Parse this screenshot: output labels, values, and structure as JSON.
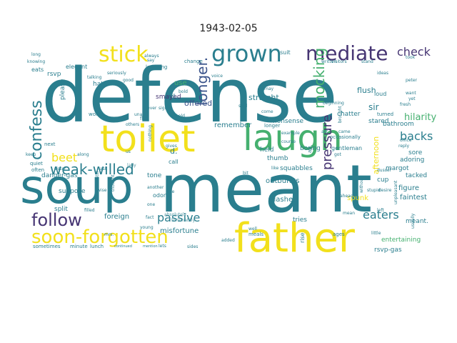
{
  "title": "1943-02-05",
  "colors": {
    "yellow": "#f2e01c",
    "teal": "#2a7e8e",
    "green": "#45b06f",
    "purple": "#463573",
    "blue": "#3b548b",
    "lightgreen": "#7ed05d"
  },
  "words": [
    {
      "t": "defense",
      "c": "teal"
    },
    {
      "t": "meant",
      "c": "teal"
    },
    {
      "t": "soup",
      "c": "teal"
    },
    {
      "t": "toilet",
      "c": "yellow"
    },
    {
      "t": "laugh",
      "c": "green"
    },
    {
      "t": "father",
      "c": "yellow"
    },
    {
      "t": "grown",
      "c": "teal"
    },
    {
      "t": "mediate",
      "c": "purple"
    },
    {
      "t": "stick",
      "c": "yellow"
    },
    {
      "t": "soon-forgotten",
      "c": "yellow"
    },
    {
      "t": "follow",
      "c": "purple"
    },
    {
      "t": "weak-willed",
      "c": "teal"
    },
    {
      "t": "confess",
      "c": "teal"
    },
    {
      "t": "check",
      "c": "purple"
    },
    {
      "t": "longer.",
      "c": "blue"
    },
    {
      "t": "mocking",
      "c": "green"
    },
    {
      "t": "pressure",
      "c": "purple"
    },
    {
      "t": "backs",
      "c": "teal"
    },
    {
      "t": "passive",
      "c": "teal"
    },
    {
      "t": "eaters",
      "c": "teal"
    },
    {
      "t": "beet",
      "c": "yellow"
    },
    {
      "t": "hilarity",
      "c": "green"
    },
    {
      "t": "sir",
      "c": "teal"
    },
    {
      "t": "flush",
      "c": "teal"
    },
    {
      "t": "grown",
      "c": "teal"
    },
    {
      "t": "offered",
      "c": "blue"
    },
    {
      "t": "straight",
      "c": "teal"
    },
    {
      "t": "smayed",
      "c": "purple"
    },
    {
      "t": "remember",
      "c": "teal"
    },
    {
      "t": "squabbles",
      "c": "teal"
    },
    {
      "t": "outbursts",
      "c": "teal"
    },
    {
      "t": "clashes",
      "c": "teal"
    },
    {
      "t": "foreign",
      "c": "teal"
    },
    {
      "t": "misfortune",
      "c": "teal"
    },
    {
      "t": "tries",
      "c": "teal"
    },
    {
      "t": "meant.",
      "c": "teal"
    },
    {
      "t": "entertaining",
      "c": "green"
    },
    {
      "t": "rsvp-gas",
      "c": "teal"
    },
    {
      "t": "faintest",
      "c": "teal"
    },
    {
      "t": "figure",
      "c": "teal"
    },
    {
      "t": "tacked",
      "c": "teal"
    },
    {
      "t": "spunk",
      "c": "yellow"
    },
    {
      "t": "cup",
      "c": "teal"
    },
    {
      "t": "adoring",
      "c": "teal"
    },
    {
      "t": "sore",
      "c": "teal"
    },
    {
      "t": "margot",
      "c": "teal"
    },
    {
      "t": "bathroom",
      "c": "teal"
    },
    {
      "t": "afternoon",
      "c": "yellow"
    },
    {
      "t": "held",
      "c": "teal"
    },
    {
      "t": "thumb",
      "c": "teal"
    },
    {
      "t": "danger-gas",
      "c": "teal"
    },
    {
      "t": "suppose",
      "c": "teal"
    },
    {
      "t": "split",
      "c": "teal"
    },
    {
      "t": "odor",
      "c": "teal"
    },
    {
      "t": "tone",
      "c": "teal"
    },
    {
      "t": "please",
      "c": "teal"
    },
    {
      "t": "hate",
      "c": "teal"
    },
    {
      "t": "elegant",
      "c": "teal"
    },
    {
      "t": "rsvp",
      "c": "teal"
    },
    {
      "t": "eats",
      "c": "teal"
    },
    {
      "t": "use",
      "c": "green"
    },
    {
      "t": "nonsense",
      "c": "teal"
    },
    {
      "t": "chatter",
      "c": "teal"
    },
    {
      "t": "stared",
      "c": "teal"
    },
    {
      "t": "boring",
      "c": "teal"
    },
    {
      "t": "loud",
      "c": "teal"
    },
    {
      "t": "d.",
      "c": "teal"
    },
    {
      "t": "call",
      "c": "teal"
    },
    {
      "t": "gentleman",
      "c": "teal"
    },
    {
      "t": "suit",
      "c": "teal"
    },
    {
      "t": "lady",
      "c": "teal"
    },
    {
      "t": "absolutely",
      "c": "teal"
    },
    {
      "t": "fortunately",
      "c": "teal"
    },
    {
      "t": "rise",
      "c": "teal"
    },
    {
      "t": "ages",
      "c": "teal"
    },
    {
      "t": "meals",
      "c": "teal"
    },
    {
      "t": "lunch",
      "c": "teal"
    },
    {
      "t": "minute",
      "c": "teal"
    },
    {
      "t": "sometimes",
      "c": "teal"
    },
    {
      "t": "young",
      "c": "teal"
    },
    {
      "t": "fact",
      "c": "teal"
    },
    {
      "t": "always",
      "c": "teal"
    },
    {
      "t": "laughing",
      "c": "teal"
    },
    {
      "t": "flirt",
      "c": "teal"
    },
    {
      "t": "others",
      "c": "teal"
    },
    {
      "t": "words",
      "c": "teal"
    },
    {
      "t": "next",
      "c": "teal"
    },
    {
      "t": "quiet",
      "c": "teal"
    },
    {
      "t": "often",
      "c": "teal"
    },
    {
      "t": "sister",
      "c": "teal"
    },
    {
      "t": "along",
      "c": "teal"
    },
    {
      "t": "filled",
      "c": "teal"
    },
    {
      "t": "gives",
      "c": "teal"
    },
    {
      "t": "nothing",
      "c": "teal"
    },
    {
      "t": "unable",
      "c": "teal"
    },
    {
      "t": "ever",
      "c": "teal"
    },
    {
      "t": "sign",
      "c": "teal"
    },
    {
      "t": "change",
      "c": "teal"
    },
    {
      "t": "voice",
      "c": "teal"
    },
    {
      "t": "visitors",
      "c": "teal"
    },
    {
      "t": "stand",
      "c": "teal"
    },
    {
      "t": "peter",
      "c": "teal"
    },
    {
      "t": "turned",
      "c": "teal"
    },
    {
      "t": "ideas",
      "c": "teal"
    },
    {
      "t": "beginning",
      "c": "teal"
    },
    {
      "t": "occasionally",
      "c": "teal"
    },
    {
      "t": "air",
      "c": "teal"
    },
    {
      "t": "longer",
      "c": "teal"
    },
    {
      "t": "said",
      "c": "teal"
    },
    {
      "t": "may",
      "c": "teal"
    },
    {
      "t": "come",
      "c": "teal"
    },
    {
      "t": "bit",
      "c": "teal"
    },
    {
      "t": "like",
      "c": "teal"
    },
    {
      "t": "mean",
      "c": "teal"
    },
    {
      "t": "well",
      "c": "teal"
    },
    {
      "t": "ahead",
      "c": "teal"
    },
    {
      "t": "desire",
      "c": "teal"
    },
    {
      "t": "office",
      "c": "teal"
    },
    {
      "t": "stupid",
      "c": "teal"
    },
    {
      "t": "dussel",
      "c": "teal"
    },
    {
      "t": "little",
      "c": "teal"
    },
    {
      "t": "knowing",
      "c": "teal"
    },
    {
      "t": "long",
      "c": "teal"
    },
    {
      "t": "good",
      "c": "teal"
    },
    {
      "t": "seriously",
      "c": "teal"
    },
    {
      "t": "talking",
      "c": "teal"
    },
    {
      "t": "mrs.",
      "c": "teal"
    },
    {
      "t": "lets",
      "c": "teal"
    },
    {
      "t": "sides",
      "c": "teal"
    },
    {
      "t": "another",
      "c": "teal"
    },
    {
      "t": "still",
      "c": "teal"
    },
    {
      "t": "us",
      "c": "teal"
    },
    {
      "t": "ask",
      "c": "teal"
    },
    {
      "t": "keep",
      "c": "teal"
    },
    {
      "t": "continued",
      "c": "teal"
    },
    {
      "t": "mention",
      "c": "teal"
    },
    {
      "t": "added",
      "c": "teal"
    },
    {
      "t": "written",
      "c": "teal"
    },
    {
      "t": "bold",
      "c": "teal"
    },
    {
      "t": "tell",
      "c": "teal"
    },
    {
      "t": "got",
      "c": "teal"
    },
    {
      "t": "brought",
      "c": "teal"
    },
    {
      "t": "fresh",
      "c": "teal"
    },
    {
      "t": "usually",
      "c": "teal"
    },
    {
      "t": "reply",
      "c": "teal"
    },
    {
      "t": "unpleasant",
      "c": "teal"
    },
    {
      "t": "without",
      "c": "teal"
    },
    {
      "t": "thought",
      "c": "teal"
    },
    {
      "t": "course",
      "c": "teal"
    },
    {
      "t": "example",
      "c": "teal"
    },
    {
      "t": "one",
      "c": "teal"
    },
    {
      "t": "want",
      "c": "teal"
    },
    {
      "t": "yet",
      "c": "teal"
    },
    {
      "t": "act",
      "c": "teal"
    },
    {
      "t": "hold",
      "c": "teal"
    },
    {
      "t": "came",
      "c": "teal"
    },
    {
      "t": "say",
      "c": "teal"
    },
    {
      "t": "took",
      "c": "teal"
    },
    {
      "t": "left",
      "c": "teal"
    },
    {
      "t": "joke",
      "c": "teal"
    },
    {
      "t": "wise",
      "c": "teal"
    }
  ]
}
